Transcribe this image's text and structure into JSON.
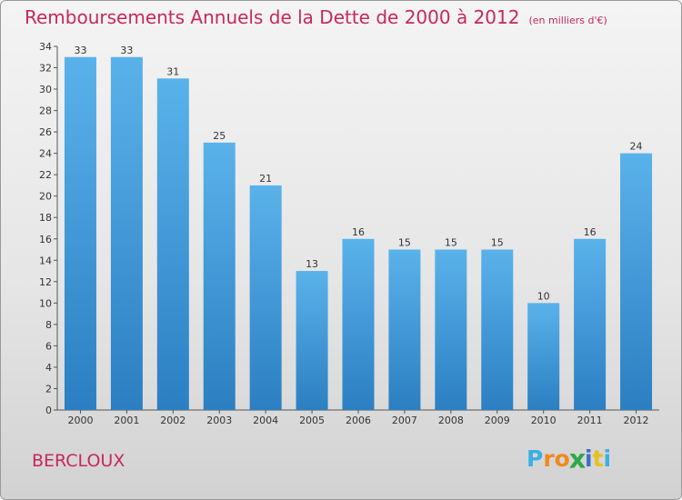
{
  "title": "Remboursements Annuels de la Dette de 2000 à 2012",
  "subtitle": "(en milliers d'€)",
  "city": "BERCLOUX",
  "brand": {
    "letters": [
      "P",
      "r",
      "o",
      "x",
      "i",
      "t",
      "i"
    ],
    "colors": [
      "#3ab0e2",
      "#f08a1c",
      "#f08a1c",
      "#2ea84a",
      "#3a6fc8",
      "#e8c21a",
      "#3ab0e2"
    ]
  },
  "colors": {
    "bar_light": "#5ab2ea",
    "bar_dark": "#2b7fc2",
    "title": "#c8275f"
  },
  "chart_data": {
    "type": "bar",
    "categories": [
      "2000",
      "2001",
      "2002",
      "2003",
      "2004",
      "2005",
      "2006",
      "2007",
      "2008",
      "2009",
      "2010",
      "2011",
      "2012"
    ],
    "values": [
      33,
      33,
      31,
      25,
      21,
      13,
      16,
      15,
      15,
      15,
      10,
      16,
      24
    ],
    "data_labels": [
      "33",
      "33",
      "31",
      "25",
      "21",
      "13",
      "16",
      "15",
      "15",
      "15",
      "10",
      "16",
      "24"
    ],
    "yticks": [
      "0",
      "2",
      "4",
      "6",
      "8",
      "10",
      "12",
      "14",
      "16",
      "18",
      "20",
      "22",
      "24",
      "26",
      "28",
      "30",
      "32",
      "34"
    ],
    "ylim": [
      0,
      34
    ],
    "grid": false,
    "legend": "none"
  }
}
